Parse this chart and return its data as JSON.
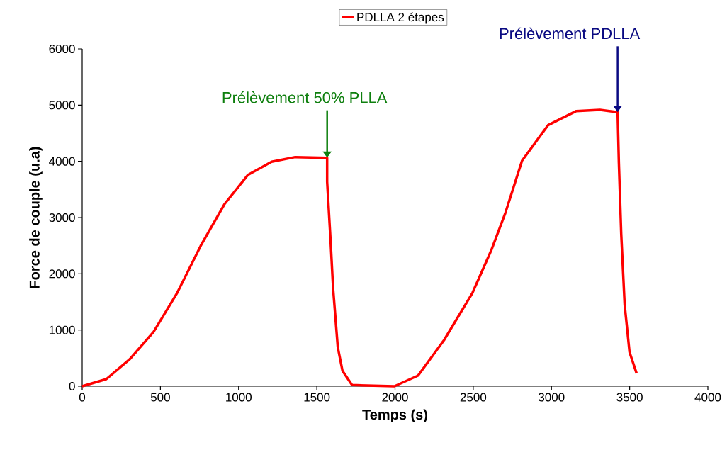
{
  "chart_data": {
    "type": "line",
    "xlabel": "Temps (s)",
    "ylabel": "Force de couple (u.a)",
    "xlim": [
      0,
      4000
    ],
    "ylim": [
      0,
      6000
    ],
    "xticks": [
      0,
      500,
      1000,
      1500,
      2000,
      2500,
      3000,
      3500,
      4000
    ],
    "yticks": [
      0,
      1000,
      2000,
      3000,
      4000,
      5000,
      6000
    ],
    "grid": false,
    "legend": "top",
    "marker": "none",
    "line_style": "solid",
    "series": [
      {
        "name": "PDLLA 2 étapes",
        "color": "#ff0000",
        "x": [
          0,
          154,
          305,
          456,
          607,
          758,
          909,
          1060,
          1211,
          1362,
          1566,
          1566,
          1588,
          1604,
          1634,
          1664,
          1725,
          1996,
          2147,
          2313,
          2495,
          2615,
          2706,
          2812,
          2978,
          3159,
          3310,
          3423,
          3431,
          3446,
          3468,
          3499,
          3544
        ],
        "values": [
          0,
          126,
          483,
          967,
          1660,
          2500,
          3236,
          3760,
          3992,
          4076,
          4063,
          3634,
          2584,
          1744,
          693,
          274,
          21,
          0,
          189,
          819,
          1660,
          2416,
          3088,
          4012,
          4643,
          4895,
          4916,
          4874,
          3971,
          2710,
          1450,
          609,
          231
        ]
      }
    ],
    "annotations": [
      {
        "text": "Prélèvement 50% PLLA",
        "x": 1566,
        "y": 4063
      },
      {
        "text": "Prélèvement PDLLA",
        "x": 3423,
        "y": 4874
      }
    ]
  }
}
